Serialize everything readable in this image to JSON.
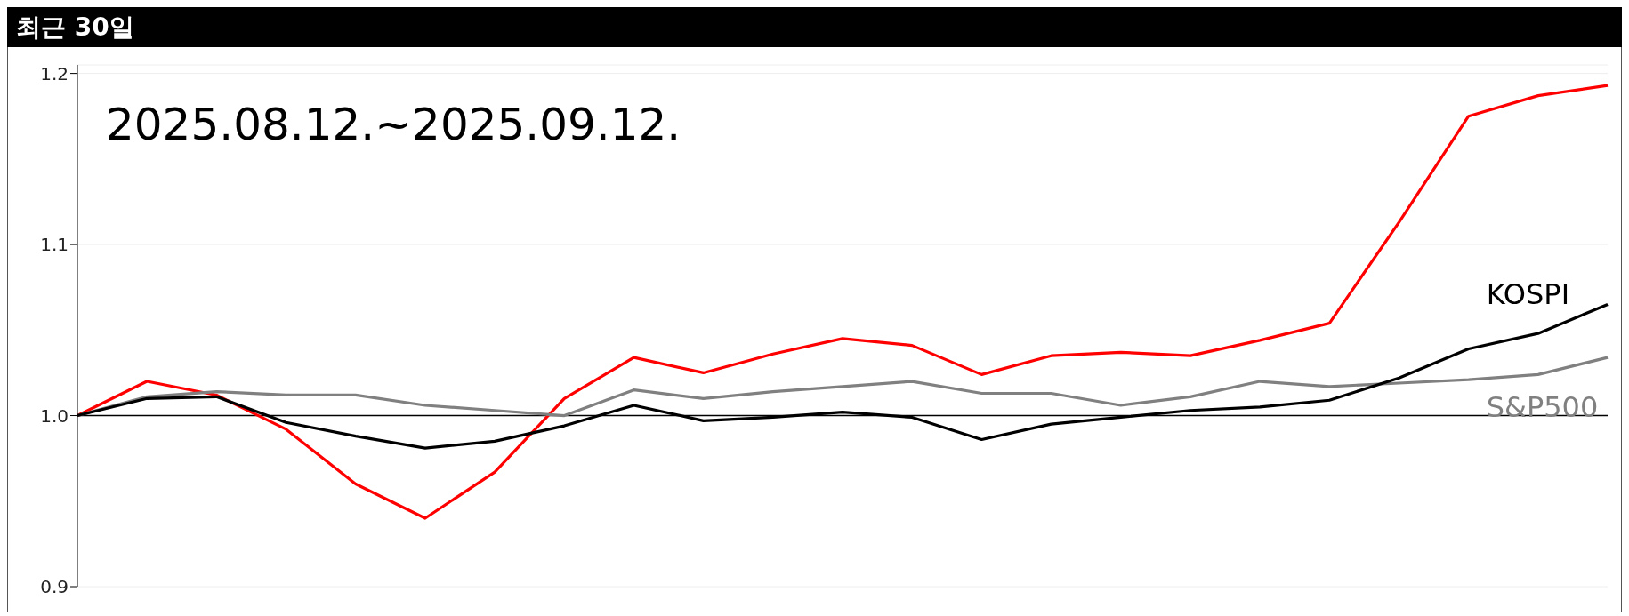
{
  "chart_data": {
    "type": "line",
    "title": "최근 30일",
    "annotations": [
      "2025.08.12.~2025.09.12."
    ],
    "categories": [
      null,
      null,
      null,
      null,
      null,
      null,
      null,
      null,
      null,
      null,
      null,
      null,
      null,
      null,
      null,
      null,
      null,
      null,
      null,
      null,
      null,
      null,
      null
    ],
    "series": [
      {
        "color": "#ff0000",
        "values": [
          1.0,
          1.02,
          1.012,
          0.992,
          0.96,
          0.94,
          0.967,
          1.01,
          1.034,
          1.025,
          1.036,
          1.045,
          1.041,
          1.024,
          1.035,
          1.037,
          1.035,
          1.044,
          1.054,
          1.113,
          1.175,
          1.187,
          1.193
        ]
      },
      {
        "name": "S&P500",
        "color": "#808080",
        "values": [
          1.0,
          1.011,
          1.014,
          1.012,
          1.012,
          1.006,
          1.003,
          1.0,
          1.015,
          1.01,
          1.014,
          1.017,
          1.02,
          1.013,
          1.013,
          1.006,
          1.011,
          1.02,
          1.017,
          1.019,
          1.021,
          1.024,
          1.034
        ]
      },
      {
        "name": "KOSPI",
        "color": "#000000",
        "values": [
          1.0,
          1.01,
          1.011,
          0.996,
          0.988,
          0.981,
          0.985,
          0.994,
          1.006,
          0.997,
          0.999,
          1.002,
          0.999,
          0.986,
          0.995,
          0.999,
          1.003,
          1.005,
          1.009,
          1.022,
          1.039,
          1.048,
          1.065
        ]
      }
    ],
    "ylim": [
      0.9,
      1.205
    ],
    "yticks": [
      {
        "value": 0.9,
        "label": "0.9"
      },
      {
        "value": 1.0,
        "label": "1.0"
      },
      {
        "value": 1.1,
        "label": "1.1"
      },
      {
        "value": 1.2,
        "label": "1.2"
      }
    ],
    "grid": "y",
    "tick_labels": "y",
    "marker": "none",
    "line_style": "solid",
    "ref_lines": [
      {
        "axis": "y",
        "value": 1.0,
        "color": "#000000"
      }
    ]
  }
}
